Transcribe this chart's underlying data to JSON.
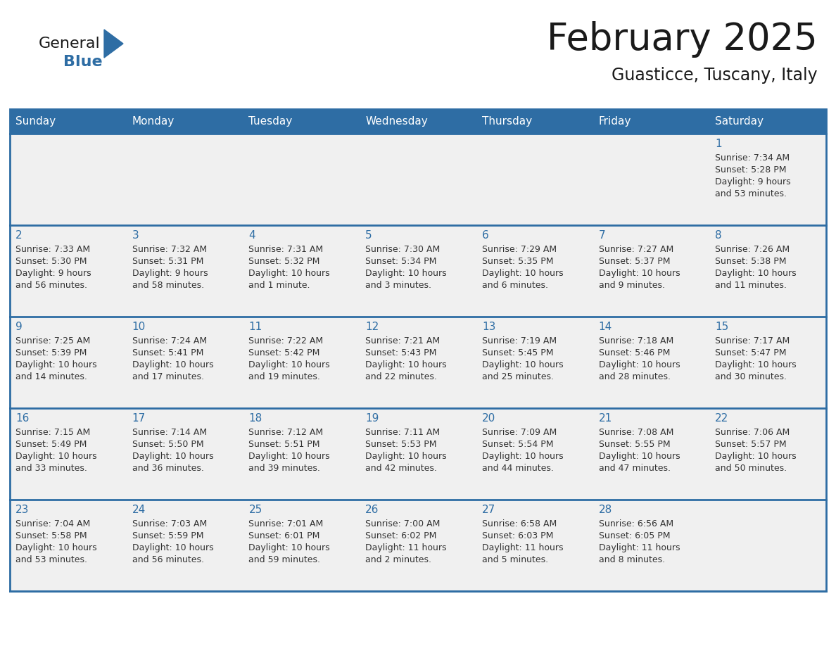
{
  "title": "February 2025",
  "subtitle": "Guasticce, Tuscany, Italy",
  "days_of_week": [
    "Sunday",
    "Monday",
    "Tuesday",
    "Wednesday",
    "Thursday",
    "Friday",
    "Saturday"
  ],
  "header_bg": "#2E6DA4",
  "header_text": "#FFFFFF",
  "cell_bg": "#F0F0F0",
  "cell_bg_white": "#FFFFFF",
  "border_color": "#2E6DA4",
  "day_number_color": "#2E6DA4",
  "text_color": "#333333",
  "logo_general_color": "#1a1a1a",
  "logo_blue_color": "#2E6DA4",
  "calendar_data": [
    [
      null,
      null,
      null,
      null,
      null,
      null,
      {
        "day": 1,
        "sunrise": "7:34 AM",
        "sunset": "5:28 PM",
        "daylight": "9 hours",
        "daylight2": "and 53 minutes."
      }
    ],
    [
      {
        "day": 2,
        "sunrise": "7:33 AM",
        "sunset": "5:30 PM",
        "daylight": "9 hours",
        "daylight2": "and 56 minutes."
      },
      {
        "day": 3,
        "sunrise": "7:32 AM",
        "sunset": "5:31 PM",
        "daylight": "9 hours",
        "daylight2": "and 58 minutes."
      },
      {
        "day": 4,
        "sunrise": "7:31 AM",
        "sunset": "5:32 PM",
        "daylight": "10 hours",
        "daylight2": "and 1 minute."
      },
      {
        "day": 5,
        "sunrise": "7:30 AM",
        "sunset": "5:34 PM",
        "daylight": "10 hours",
        "daylight2": "and 3 minutes."
      },
      {
        "day": 6,
        "sunrise": "7:29 AM",
        "sunset": "5:35 PM",
        "daylight": "10 hours",
        "daylight2": "and 6 minutes."
      },
      {
        "day": 7,
        "sunrise": "7:27 AM",
        "sunset": "5:37 PM",
        "daylight": "10 hours",
        "daylight2": "and 9 minutes."
      },
      {
        "day": 8,
        "sunrise": "7:26 AM",
        "sunset": "5:38 PM",
        "daylight": "10 hours",
        "daylight2": "and 11 minutes."
      }
    ],
    [
      {
        "day": 9,
        "sunrise": "7:25 AM",
        "sunset": "5:39 PM",
        "daylight": "10 hours",
        "daylight2": "and 14 minutes."
      },
      {
        "day": 10,
        "sunrise": "7:24 AM",
        "sunset": "5:41 PM",
        "daylight": "10 hours",
        "daylight2": "and 17 minutes."
      },
      {
        "day": 11,
        "sunrise": "7:22 AM",
        "sunset": "5:42 PM",
        "daylight": "10 hours",
        "daylight2": "and 19 minutes."
      },
      {
        "day": 12,
        "sunrise": "7:21 AM",
        "sunset": "5:43 PM",
        "daylight": "10 hours",
        "daylight2": "and 22 minutes."
      },
      {
        "day": 13,
        "sunrise": "7:19 AM",
        "sunset": "5:45 PM",
        "daylight": "10 hours",
        "daylight2": "and 25 minutes."
      },
      {
        "day": 14,
        "sunrise": "7:18 AM",
        "sunset": "5:46 PM",
        "daylight": "10 hours",
        "daylight2": "and 28 minutes."
      },
      {
        "day": 15,
        "sunrise": "7:17 AM",
        "sunset": "5:47 PM",
        "daylight": "10 hours",
        "daylight2": "and 30 minutes."
      }
    ],
    [
      {
        "day": 16,
        "sunrise": "7:15 AM",
        "sunset": "5:49 PM",
        "daylight": "10 hours",
        "daylight2": "and 33 minutes."
      },
      {
        "day": 17,
        "sunrise": "7:14 AM",
        "sunset": "5:50 PM",
        "daylight": "10 hours",
        "daylight2": "and 36 minutes."
      },
      {
        "day": 18,
        "sunrise": "7:12 AM",
        "sunset": "5:51 PM",
        "daylight": "10 hours",
        "daylight2": "and 39 minutes."
      },
      {
        "day": 19,
        "sunrise": "7:11 AM",
        "sunset": "5:53 PM",
        "daylight": "10 hours",
        "daylight2": "and 42 minutes."
      },
      {
        "day": 20,
        "sunrise": "7:09 AM",
        "sunset": "5:54 PM",
        "daylight": "10 hours",
        "daylight2": "and 44 minutes."
      },
      {
        "day": 21,
        "sunrise": "7:08 AM",
        "sunset": "5:55 PM",
        "daylight": "10 hours",
        "daylight2": "and 47 minutes."
      },
      {
        "day": 22,
        "sunrise": "7:06 AM",
        "sunset": "5:57 PM",
        "daylight": "10 hours",
        "daylight2": "and 50 minutes."
      }
    ],
    [
      {
        "day": 23,
        "sunrise": "7:04 AM",
        "sunset": "5:58 PM",
        "daylight": "10 hours",
        "daylight2": "and 53 minutes."
      },
      {
        "day": 24,
        "sunrise": "7:03 AM",
        "sunset": "5:59 PM",
        "daylight": "10 hours",
        "daylight2": "and 56 minutes."
      },
      {
        "day": 25,
        "sunrise": "7:01 AM",
        "sunset": "6:01 PM",
        "daylight": "10 hours",
        "daylight2": "and 59 minutes."
      },
      {
        "day": 26,
        "sunrise": "7:00 AM",
        "sunset": "6:02 PM",
        "daylight": "11 hours",
        "daylight2": "and 2 minutes."
      },
      {
        "day": 27,
        "sunrise": "6:58 AM",
        "sunset": "6:03 PM",
        "daylight": "11 hours",
        "daylight2": "and 5 minutes."
      },
      {
        "day": 28,
        "sunrise": "6:56 AM",
        "sunset": "6:05 PM",
        "daylight": "11 hours",
        "daylight2": "and 8 minutes."
      },
      null
    ]
  ]
}
